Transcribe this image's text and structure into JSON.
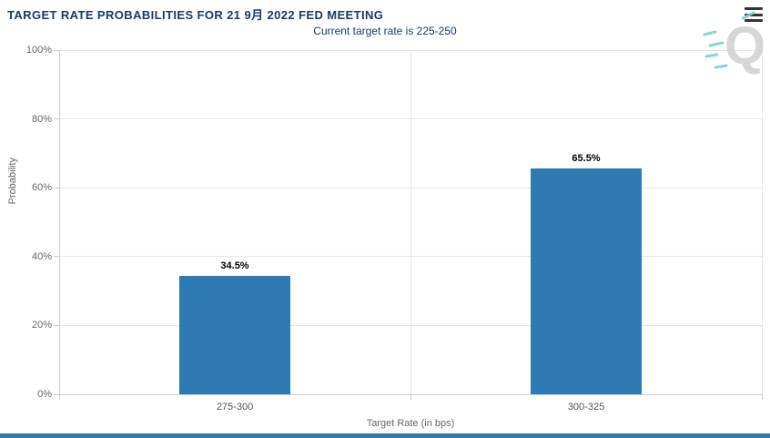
{
  "header": {
    "menu_icon": "hamburger-menu-icon"
  },
  "watermark": {
    "letter": "Q",
    "letter_color": "#d2d2d2",
    "dash_color": "#7fd0d0"
  },
  "chart_data": {
    "type": "bar",
    "title": "TARGET RATE PROBABILITIES FOR 21 9月 2022 FED MEETING",
    "subtitle": "Current target rate is 225-250",
    "categories": [
      "275-300",
      "300-325"
    ],
    "values": [
      34.5,
      65.5
    ],
    "data_labels": [
      "34.5%",
      "65.5%"
    ],
    "xlabel": "Target Rate (in bps)",
    "ylabel": "Probability",
    "ylim": [
      0,
      100
    ],
    "ytick_step": 20,
    "yticks": [
      "0%",
      "20%",
      "40%",
      "60%",
      "80%",
      "100%"
    ],
    "grid": true,
    "legend": "none",
    "bar_color": "#2e7bb4",
    "title_color": "#1a3a64",
    "subtitle_color": "#1a3a64"
  }
}
